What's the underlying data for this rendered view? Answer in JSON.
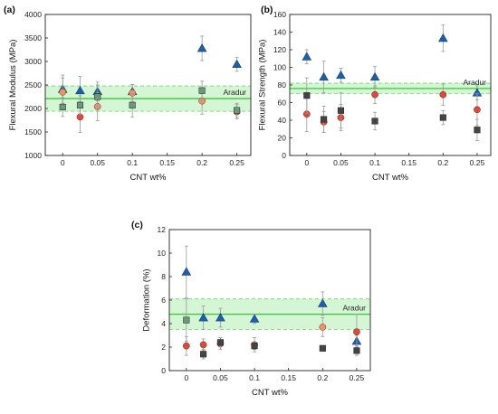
{
  "colors": {
    "series_triangle": "#1f5fa8",
    "series_circle": "#d94a3a",
    "series_square": "#444444",
    "series_square_light": "#6a9a7a",
    "series_circle_light": "#e8956a",
    "reference_line": "#3cc43c",
    "reference_band": "#cdf5cd",
    "error_bar": "#9a9a9a"
  },
  "chart_data": [
    {
      "type": "scatter",
      "panel_label": "(a)",
      "xlabel": "CNT wt%",
      "ylabel": "Flexural Modulus (MPa)",
      "xlim": [
        -0.025,
        0.27
      ],
      "ylim": [
        1000,
        4000
      ],
      "xticks": [
        "0",
        "0.05",
        "0.1",
        "0.15",
        "0.2",
        "0.25"
      ],
      "xtick_values": [
        0,
        0.05,
        0.1,
        0.15,
        0.2,
        0.25
      ],
      "yticks": [
        "1000",
        "1500",
        "2000",
        "2500",
        "3000",
        "3500",
        "4000"
      ],
      "ytick_values": [
        1000,
        1500,
        2000,
        2500,
        3000,
        3500,
        4000
      ],
      "reference": {
        "label": "Aradur",
        "value": 2210,
        "band": [
          1940,
          2480
        ]
      },
      "series": [
        {
          "marker": "triangle",
          "points": [
            {
              "x": 0,
              "y": 2410,
              "err": 300
            },
            {
              "x": 0.025,
              "y": 2380,
              "err": 300
            },
            {
              "x": 0.05,
              "y": 2360,
              "err": 200
            },
            {
              "x": 0.1,
              "y": 2360,
              "err": 150
            },
            {
              "x": 0.2,
              "y": 3280,
              "err": 260
            },
            {
              "x": 0.25,
              "y": 2940,
              "err": 150
            }
          ]
        },
        {
          "marker": "circle",
          "points": [
            {
              "x": 0,
              "y": 2350,
              "err": 300,
              "shade": "light"
            },
            {
              "x": 0.025,
              "y": 1820,
              "err": 330
            },
            {
              "x": 0.05,
              "y": 2040,
              "err": 300,
              "shade": "light"
            },
            {
              "x": 0.1,
              "y": 2330,
              "err": 180,
              "shade": "light"
            },
            {
              "x": 0.2,
              "y": 2160,
              "err": 280,
              "shade": "light"
            },
            {
              "x": 0.25,
              "y": 1930,
              "err": 150
            }
          ]
        },
        {
          "marker": "square",
          "points": [
            {
              "x": 0,
              "y": 2030,
              "err": 200,
              "shade": "light"
            },
            {
              "x": 0.025,
              "y": 2070,
              "err": 200,
              "shade": "light"
            },
            {
              "x": 0.05,
              "y": 2250,
              "err": 250,
              "shade": "light"
            },
            {
              "x": 0.1,
              "y": 2070,
              "err": 250,
              "shade": "light"
            },
            {
              "x": 0.2,
              "y": 2380,
              "err": 200,
              "shade": "light"
            },
            {
              "x": 0.25,
              "y": 1960,
              "err": 150,
              "shade": "light"
            }
          ]
        }
      ]
    },
    {
      "type": "scatter",
      "panel_label": "(b)",
      "xlabel": "CNT wt%",
      "ylabel": "Flexural Strength (MPa)",
      "xlim": [
        -0.025,
        0.27
      ],
      "ylim": [
        0,
        160
      ],
      "xticks": [
        "0",
        "0.05",
        "0.1",
        "0.15",
        "0.2",
        "0.25"
      ],
      "xtick_values": [
        0,
        0.05,
        0.1,
        0.15,
        0.2,
        0.25
      ],
      "yticks": [
        "0",
        "20",
        "40",
        "60",
        "80",
        "100",
        "120",
        "140",
        "160"
      ],
      "ytick_values": [
        0,
        20,
        40,
        60,
        80,
        100,
        120,
        140,
        160
      ],
      "reference": {
        "label": "Aradur",
        "value": 76,
        "band": [
          70,
          82
        ]
      },
      "series": [
        {
          "marker": "triangle",
          "points": [
            {
              "x": 0,
              "y": 112,
              "err": 8
            },
            {
              "x": 0.025,
              "y": 89,
              "err": 18
            },
            {
              "x": 0.05,
              "y": 91,
              "err": 8
            },
            {
              "x": 0.1,
              "y": 89,
              "err": 12
            },
            {
              "x": 0.2,
              "y": 133,
              "err": 15
            },
            {
              "x": 0.25,
              "y": 71,
              "err": 8
            }
          ]
        },
        {
          "marker": "circle",
          "points": [
            {
              "x": 0,
              "y": 47,
              "err": 20
            },
            {
              "x": 0.025,
              "y": 38,
              "err": 12
            },
            {
              "x": 0.05,
              "y": 43,
              "err": 15
            },
            {
              "x": 0.1,
              "y": 69,
              "err": 10
            },
            {
              "x": 0.2,
              "y": 69,
              "err": 12
            },
            {
              "x": 0.25,
              "y": 52,
              "err": 18
            }
          ]
        },
        {
          "marker": "square",
          "points": [
            {
              "x": 0,
              "y": 68,
              "err": 20
            },
            {
              "x": 0.025,
              "y": 41,
              "err": 15
            },
            {
              "x": 0.05,
              "y": 51,
              "err": 20
            },
            {
              "x": 0.1,
              "y": 39,
              "err": 10
            },
            {
              "x": 0.2,
              "y": 43,
              "err": 8
            },
            {
              "x": 0.25,
              "y": 29,
              "err": 12
            }
          ]
        }
      ]
    },
    {
      "type": "scatter",
      "panel_label": "(c)",
      "xlabel": "CNT wt%",
      "ylabel": "Deformation (%)",
      "xlim": [
        -0.025,
        0.27
      ],
      "ylim": [
        0,
        12
      ],
      "xticks": [
        "0",
        "0.05",
        "0.1",
        "0.15",
        "0.2",
        "0.25"
      ],
      "xtick_values": [
        0,
        0.05,
        0.1,
        0.15,
        0.2,
        0.25
      ],
      "yticks": [
        "0",
        "2",
        "4",
        "6",
        "8",
        "10",
        "12"
      ],
      "ytick_values": [
        0,
        2,
        4,
        6,
        8,
        10,
        12
      ],
      "reference": {
        "label": "Aradur",
        "value": 4.8,
        "band": [
          3.5,
          6.1
        ]
      },
      "series": [
        {
          "marker": "triangle",
          "points": [
            {
              "x": 0,
              "y": 8.4,
              "err": 2.2
            },
            {
              "x": 0.025,
              "y": 4.5,
              "err": 1.0
            },
            {
              "x": 0.05,
              "y": 4.5,
              "err": 0.8
            },
            {
              "x": 0.1,
              "y": 4.4,
              "err": 0.4
            },
            {
              "x": 0.2,
              "y": 5.7,
              "err": 1.0
            },
            {
              "x": 0.25,
              "y": 2.5,
              "err": 0.5
            }
          ]
        },
        {
          "marker": "circle",
          "points": [
            {
              "x": 0,
              "y": 2.1,
              "err": 0.8
            },
            {
              "x": 0.025,
              "y": 2.2,
              "err": 0.5
            },
            {
              "x": 0.05,
              "y": 2.3,
              "err": 0.5
            },
            {
              "x": 0.1,
              "y": 2.2,
              "err": 0.6
            },
            {
              "x": 0.2,
              "y": 3.7,
              "err": 0.8,
              "shade": "light"
            },
            {
              "x": 0.25,
              "y": 3.3,
              "err": 1.5
            }
          ]
        },
        {
          "marker": "square",
          "points": [
            {
              "x": 0,
              "y": 4.3,
              "err": 1.8,
              "shade": "light"
            },
            {
              "x": 0.025,
              "y": 1.4,
              "err": 0.4
            },
            {
              "x": 0.05,
              "y": 2.4,
              "err": 0.4
            },
            {
              "x": 0.1,
              "y": 2.1,
              "err": 0.3
            },
            {
              "x": 0.2,
              "y": 1.9,
              "err": 0.2
            },
            {
              "x": 0.25,
              "y": 1.7,
              "err": 0.4
            }
          ]
        }
      ]
    }
  ]
}
